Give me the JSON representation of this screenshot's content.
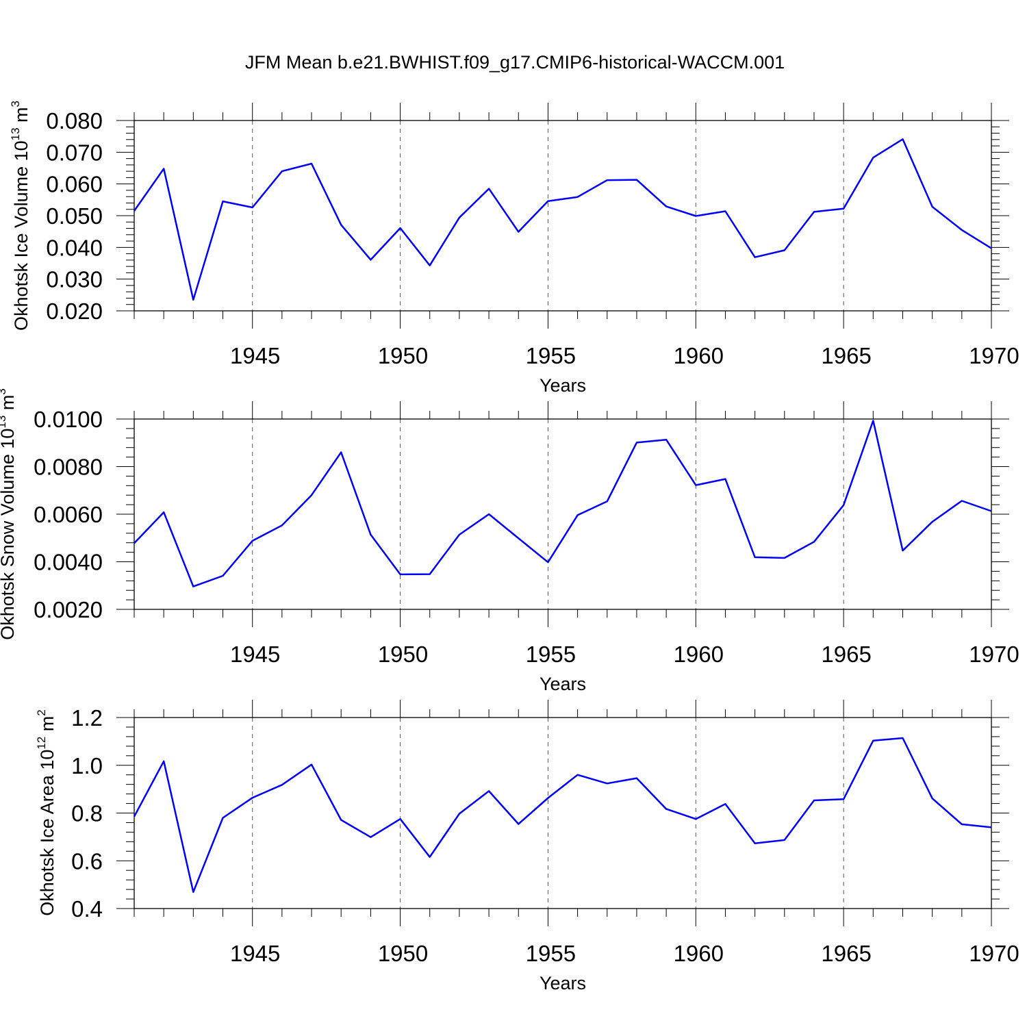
{
  "title": "JFM Mean b.e21.BWHIST.f09_g17.CMIP6-historical-WACCM.001",
  "chart_data": [
    {
      "type": "line",
      "ylabel": "Okhotsk Ice Volume 10",
      "ylabel_exp": "13",
      "ylabel_unit": " m",
      "ylabel_unit_exp": "3",
      "xlabel": "Years",
      "xlim": [
        1941,
        1970
      ],
      "ylim": [
        0.02,
        0.08
      ],
      "yticks": [
        0.02,
        0.03,
        0.04,
        0.05,
        0.06,
        0.07,
        0.08
      ],
      "ytick_labels": [
        "0.020",
        "0.030",
        "0.040",
        "0.050",
        "0.060",
        "0.070",
        "0.080"
      ],
      "xticks": [
        1945,
        1950,
        1955,
        1960,
        1965,
        1970
      ],
      "xtick_labels": [
        "1945",
        "1950",
        "1955",
        "1960",
        "1965",
        "1970"
      ],
      "grid": "dashed vertical at major x ticks",
      "x": [
        1941,
        1942,
        1943,
        1944,
        1945,
        1946,
        1947,
        1948,
        1949,
        1950,
        1951,
        1952,
        1953,
        1954,
        1955,
        1956,
        1957,
        1958,
        1959,
        1960,
        1961,
        1962,
        1963,
        1964,
        1965,
        1966,
        1967,
        1968,
        1969,
        1970
      ],
      "values": [
        0.0515,
        0.0648,
        0.0235,
        0.0545,
        0.0526,
        0.064,
        0.0664,
        0.0471,
        0.0361,
        0.0461,
        0.0343,
        0.0494,
        0.0585,
        0.0449,
        0.0546,
        0.0559,
        0.0612,
        0.0613,
        0.0529,
        0.0499,
        0.0514,
        0.0369,
        0.0391,
        0.0512,
        0.0522,
        0.0683,
        0.0741,
        0.0528,
        0.0455,
        0.0397
      ],
      "color": "#0000ff"
    },
    {
      "type": "line",
      "ylabel": "Okhotsk Snow Volume 10",
      "ylabel_exp": "13",
      "ylabel_unit": " m",
      "ylabel_unit_exp": "3",
      "xlabel": "Years",
      "xlim": [
        1941,
        1970
      ],
      "ylim": [
        0.002,
        0.01
      ],
      "yticks": [
        0.002,
        0.004,
        0.006,
        0.008,
        0.01
      ],
      "ytick_labels": [
        "0.0020",
        "0.0040",
        "0.0060",
        "0.0080",
        "0.0100"
      ],
      "xticks": [
        1945,
        1950,
        1955,
        1960,
        1965,
        1970
      ],
      "xtick_labels": [
        "1945",
        "1950",
        "1955",
        "1960",
        "1965",
        "1970"
      ],
      "grid": "dashed vertical at major x ticks",
      "x": [
        1941,
        1942,
        1943,
        1944,
        1945,
        1946,
        1947,
        1948,
        1949,
        1950,
        1951,
        1952,
        1953,
        1954,
        1955,
        1956,
        1957,
        1958,
        1959,
        1960,
        1961,
        1962,
        1963,
        1964,
        1965,
        1966,
        1967,
        1968,
        1969,
        1970
      ],
      "values": [
        0.00478,
        0.00608,
        0.00296,
        0.00341,
        0.00488,
        0.00553,
        0.0068,
        0.0086,
        0.00514,
        0.00347,
        0.00348,
        0.00514,
        0.006,
        0.00499,
        0.00398,
        0.00596,
        0.00654,
        0.00901,
        0.00913,
        0.00722,
        0.00748,
        0.00419,
        0.00416,
        0.00484,
        0.00638,
        0.00993,
        0.00447,
        0.00568,
        0.00656,
        0.00613
      ],
      "color": "#0000ff"
    },
    {
      "type": "line",
      "ylabel": "Okhotsk Ice Area 10",
      "ylabel_exp": "12",
      "ylabel_unit": " m",
      "ylabel_unit_exp": "2",
      "xlabel": "Years",
      "xlim": [
        1941,
        1970
      ],
      "ylim": [
        0.4,
        1.2
      ],
      "yticks": [
        0.4,
        0.6,
        0.8,
        1.0,
        1.2
      ],
      "ytick_labels": [
        "0.4",
        "0.6",
        "0.8",
        "1.0",
        "1.2"
      ],
      "xticks": [
        1945,
        1950,
        1955,
        1960,
        1965,
        1970
      ],
      "xtick_labels": [
        "1945",
        "1950",
        "1955",
        "1960",
        "1965",
        "1970"
      ],
      "grid": "dashed vertical at major x ticks",
      "x": [
        1941,
        1942,
        1943,
        1944,
        1945,
        1946,
        1947,
        1948,
        1949,
        1950,
        1951,
        1952,
        1953,
        1954,
        1955,
        1956,
        1957,
        1958,
        1959,
        1960,
        1961,
        1962,
        1963,
        1964,
        1965,
        1966,
        1967,
        1968,
        1969,
        1970
      ],
      "values": [
        0.785,
        1.017,
        0.469,
        0.78,
        0.864,
        0.918,
        1.003,
        0.771,
        0.699,
        0.775,
        0.616,
        0.797,
        0.892,
        0.754,
        0.863,
        0.96,
        0.924,
        0.946,
        0.817,
        0.775,
        0.838,
        0.673,
        0.687,
        0.853,
        0.858,
        1.103,
        1.114,
        0.861,
        0.753,
        0.74
      ],
      "color": "#0000ff"
    }
  ]
}
